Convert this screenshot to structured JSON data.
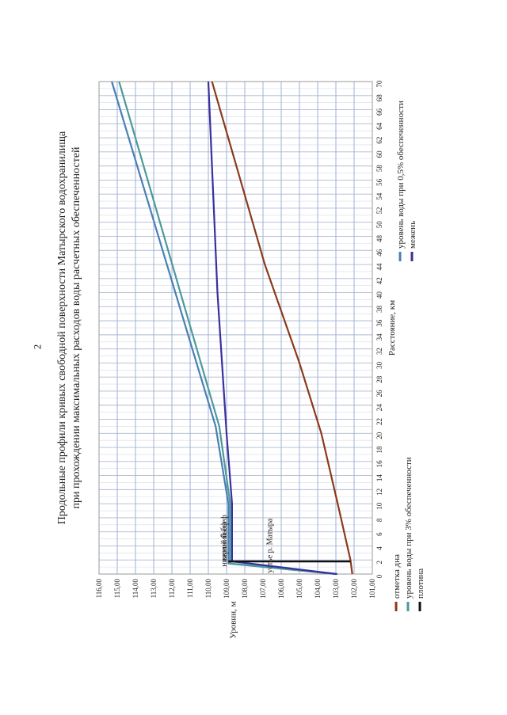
{
  "page": {
    "number": "2"
  },
  "chart_data": {
    "type": "line",
    "title_line1": "Продольные профили кривых свободной поверхности Матырского водохранилища",
    "title_line2": "при прохождении максимальных расходов воды расчетных обеспеченностей",
    "xlabel": "Расстояние, км",
    "ylabel": "Уровни, м",
    "xlim": [
      0,
      70
    ],
    "ylim": [
      101,
      116
    ],
    "x_ticks": [
      "0",
      "2",
      "4",
      "6",
      "8",
      "10",
      "12",
      "14",
      "16",
      "18",
      "20",
      "22",
      "24",
      "26",
      "28",
      "30",
      "32",
      "34",
      "36",
      "38",
      "40",
      "42",
      "44",
      "46",
      "48",
      "50",
      "52",
      "54",
      "56",
      "58",
      "60",
      "62",
      "64",
      "66",
      "68",
      "70"
    ],
    "y_ticks": [
      "101,00",
      "102,00",
      "103,00",
      "104,00",
      "105,00",
      "106,00",
      "107,00",
      "108,00",
      "109,00",
      "110,00",
      "111,00",
      "112,00",
      "113,00",
      "114,00",
      "115,00",
      "116,00"
    ],
    "series": [
      {
        "name": "отметка дна",
        "color": "#8b3a1a",
        "points": [
          [
            0,
            102.1
          ],
          [
            2,
            102.2
          ],
          [
            10,
            102.9
          ],
          [
            20,
            103.8
          ],
          [
            30,
            105.0
          ],
          [
            44,
            106.9
          ],
          [
            70,
            109.8
          ]
        ]
      },
      {
        "name": "уровень воды при 0,5% обеспеченности",
        "color": "#4a7fb5",
        "points": [
          [
            0,
            103.0
          ],
          [
            1.5,
            108.9
          ],
          [
            2,
            108.9
          ],
          [
            10,
            108.9
          ],
          [
            21,
            109.6
          ],
          [
            70,
            115.3
          ]
        ]
      },
      {
        "name": "уровень воды при 3% обеспеченности",
        "color": "#4b9a98",
        "points": [
          [
            0,
            102.9
          ],
          [
            1.5,
            108.8
          ],
          [
            2,
            108.8
          ],
          [
            10,
            108.8
          ],
          [
            21,
            109.4
          ],
          [
            70,
            114.9
          ]
        ]
      },
      {
        "name": "межень",
        "color": "#3a2f9e",
        "points": [
          [
            0,
            102.95
          ],
          [
            1.8,
            108.7
          ],
          [
            2,
            108.7
          ],
          [
            10,
            108.7
          ],
          [
            20,
            109.0
          ],
          [
            40,
            109.5
          ],
          [
            70,
            110.0
          ]
        ]
      },
      {
        "name": "плотина",
        "color": "#111111",
        "points": [
          [
            1.8,
            102.2
          ],
          [
            1.8,
            108.9
          ]
        ]
      }
    ],
    "annotations": {
      "upper_pool": "верхний бьеф",
      "lower_pool": "нижний бьеф",
      "river_mouth": "устье р. Матыра"
    },
    "legend": [
      {
        "label": "отметка дна",
        "color": "#8b3a1a"
      },
      {
        "label": "уровень воды при 3% обеспеченности",
        "color": "#4b9a98"
      },
      {
        "label": "плотина",
        "color": "#111111"
      },
      {
        "label": "уровень воды при 0,5% обеспеченности",
        "color": "#4a7fb5"
      },
      {
        "label": "межень",
        "color": "#3a2f9e"
      }
    ]
  }
}
